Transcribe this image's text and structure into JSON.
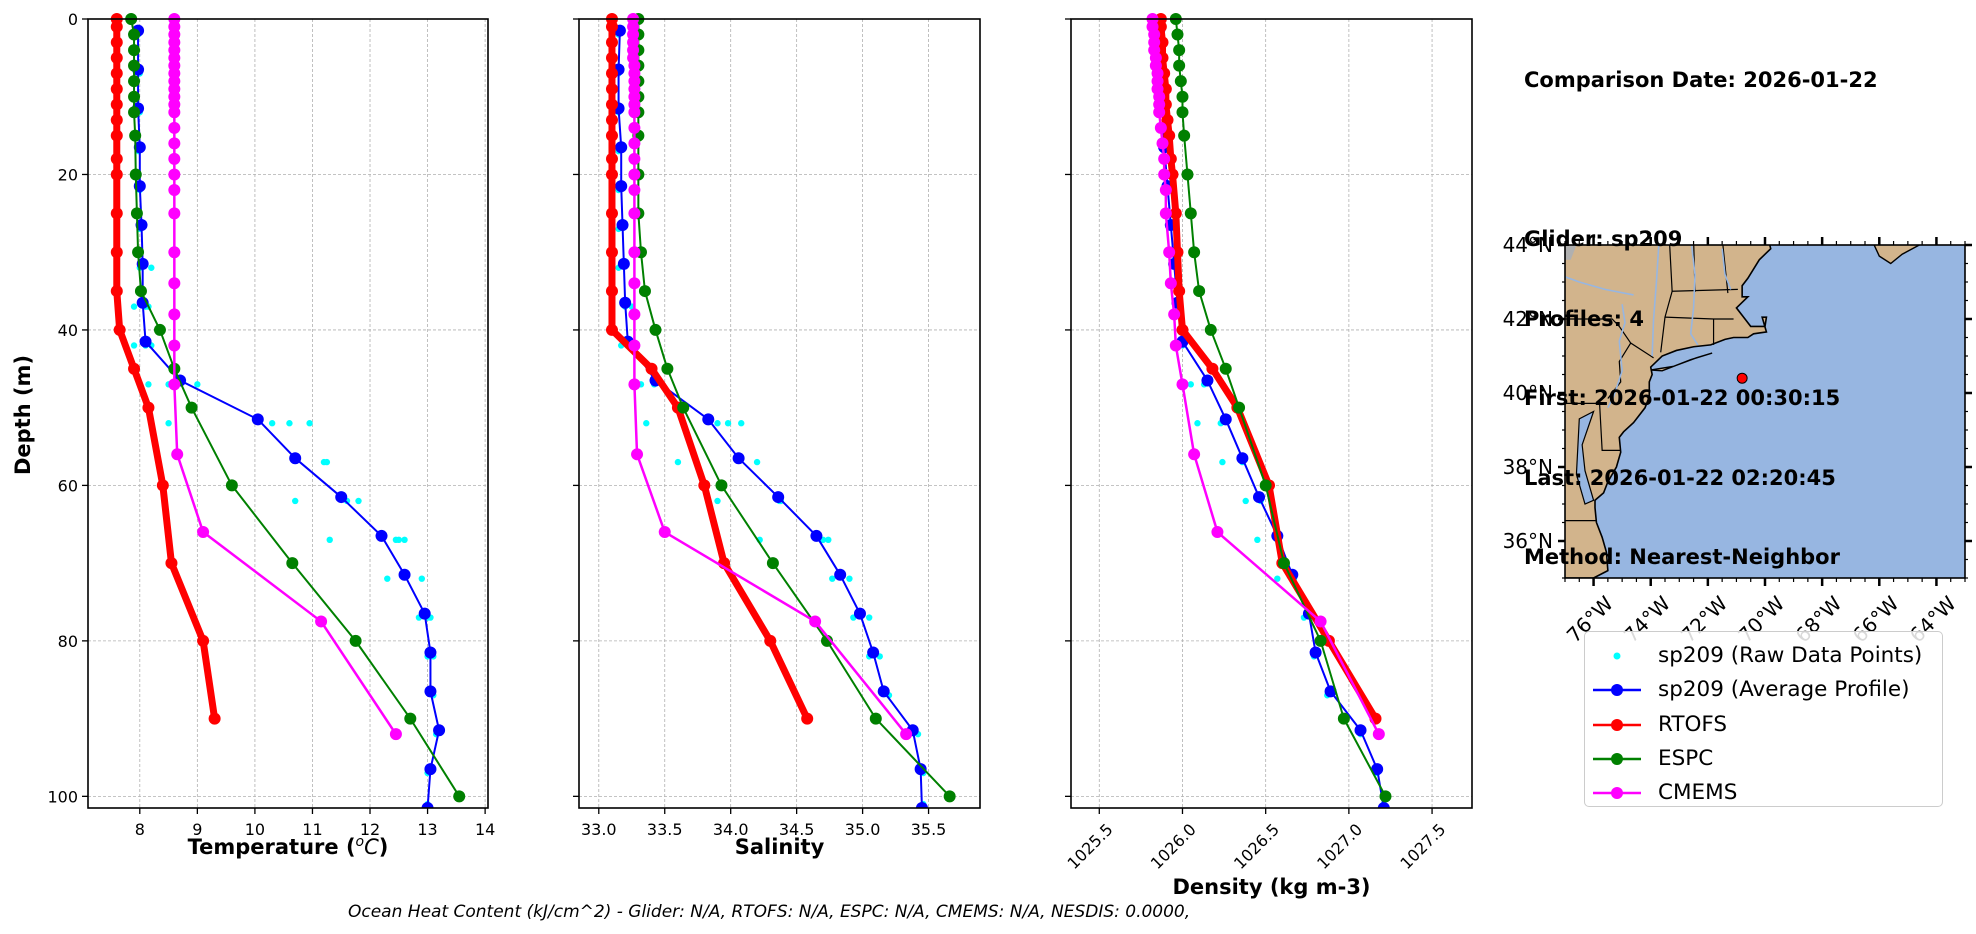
{
  "info": {
    "comparison_date": "Comparison Date: 2026-01-22",
    "glider": "Glider: sp209",
    "profiles": "Profiles: 4",
    "first": "First: 2026-01-22 00:30:15",
    "last": "Last: 2026-01-22 02:20:45",
    "method": "Method: Nearest-Neighbor"
  },
  "legend": [
    {
      "label": "sp209 (Raw Data Points)",
      "color": "#00ffff",
      "style": "points"
    },
    {
      "label": "sp209 (Average Profile)",
      "color": "#0000ff",
      "style": "line-marker"
    },
    {
      "label": "RTOFS",
      "color": "#ff0000",
      "style": "line-marker"
    },
    {
      "label": "ESPC",
      "color": "#008000",
      "style": "line-marker"
    },
    {
      "label": "CMEMS",
      "color": "#ff00ff",
      "style": "line-marker"
    }
  ],
  "footer": "Ocean Heat Content (kJ/cm^2) - Glider: N/A,  RTOFS: N/A,  ESPC: N/A,  CMEMS: N/A,  NESDIS: 0.0000,",
  "chart_data": [
    {
      "type": "line",
      "id": "temperature",
      "title": "",
      "xlabel": "Temperature (°C)",
      "ylabel": "Depth (m)",
      "xlim": [
        7.1,
        14.05
      ],
      "ylim": [
        101.5,
        0
      ],
      "xticks": [
        8,
        9,
        10,
        11,
        12,
        13,
        14
      ],
      "xtick_labels": [
        "8",
        "9",
        "10",
        "11",
        "12",
        "13",
        "14"
      ],
      "yticks": [
        0,
        20,
        40,
        60,
        80,
        100
      ],
      "ytick_labels": [
        "0",
        "20",
        "40",
        "60",
        "80",
        "100"
      ],
      "grid": true,
      "series": [
        {
          "name": "RTOFS",
          "color": "#ff0000",
          "width": 7,
          "marker": 6,
          "depth": [
            0,
            1,
            3,
            5,
            7,
            9,
            11,
            13,
            15,
            18,
            20,
            25,
            30,
            35,
            40,
            45,
            50,
            60,
            70,
            80,
            90
          ],
          "values": [
            7.6,
            7.6,
            7.6,
            7.6,
            7.6,
            7.6,
            7.6,
            7.6,
            7.6,
            7.6,
            7.6,
            7.6,
            7.6,
            7.6,
            7.65,
            7.9,
            8.15,
            8.4,
            8.55,
            9.1,
            9.3
          ]
        },
        {
          "name": "ESPC",
          "color": "#008000",
          "width": 2,
          "marker": 6,
          "depth": [
            0,
            2,
            4,
            6,
            8,
            10,
            12,
            15,
            20,
            25,
            30,
            35,
            40,
            45,
            50,
            60,
            70,
            80,
            90,
            100
          ],
          "values": [
            7.85,
            7.9,
            7.9,
            7.9,
            7.9,
            7.9,
            7.9,
            7.92,
            7.93,
            7.95,
            7.97,
            8.02,
            8.35,
            8.6,
            8.9,
            9.6,
            10.65,
            11.75,
            12.7,
            13.55
          ]
        },
        {
          "name": "CMEMS",
          "color": "#ff00ff",
          "width": 2.5,
          "marker": 6,
          "depth": [
            0,
            1,
            2,
            3,
            4,
            5,
            6,
            7,
            8,
            9,
            10,
            11,
            12,
            14,
            16,
            18,
            20,
            22,
            25,
            30,
            34,
            38,
            42,
            47,
            56,
            66,
            77.5,
            92
          ],
          "values": [
            8.6,
            8.6,
            8.6,
            8.6,
            8.6,
            8.6,
            8.6,
            8.6,
            8.6,
            8.6,
            8.6,
            8.6,
            8.6,
            8.6,
            8.6,
            8.6,
            8.6,
            8.6,
            8.6,
            8.6,
            8.6,
            8.6,
            8.6,
            8.6,
            8.65,
            9.1,
            11.15,
            12.45
          ]
        },
        {
          "name": "sp209 (Average Profile)",
          "color": "#0000ff",
          "width": 2,
          "marker": 6,
          "depth": [
            1.5,
            6.5,
            11.5,
            16.5,
            21.5,
            26.5,
            31.5,
            36.5,
            41.5,
            46.5,
            51.5,
            56.5,
            61.5,
            66.5,
            71.5,
            76.5,
            81.5,
            86.5,
            91.5,
            96.5,
            101.5
          ],
          "values": [
            7.97,
            7.97,
            7.97,
            8.0,
            8.0,
            8.03,
            8.05,
            8.05,
            8.1,
            8.7,
            10.05,
            10.7,
            11.5,
            12.2,
            12.6,
            12.95,
            13.05,
            13.05,
            13.2,
            13.05,
            13.0
          ]
        },
        {
          "name": "sp209 (Raw Data Points)",
          "color": "#00ffff",
          "type": "scatter",
          "marker": 3.2,
          "depth": [
            2,
            7,
            12,
            17,
            22,
            27,
            32,
            32,
            37,
            37,
            37,
            42,
            42,
            42,
            47,
            47,
            47,
            52,
            52,
            52,
            52,
            57,
            57,
            62,
            62,
            62,
            67,
            67,
            67,
            67,
            72,
            72,
            77,
            77,
            77,
            82,
            82,
            87,
            92,
            97,
            101
          ],
          "values": [
            7.97,
            8.0,
            8.0,
            7.98,
            8.0,
            8.0,
            8.0,
            8.2,
            7.9,
            8.1,
            8.15,
            7.9,
            8.1,
            8.2,
            8.15,
            8.5,
            9.0,
            8.5,
            10.3,
            10.6,
            10.95,
            11.2,
            11.25,
            10.7,
            11.6,
            11.8,
            11.3,
            12.5,
            12.6,
            12.45,
            12.3,
            12.9,
            12.85,
            13.0,
            13.05,
            13.0,
            13.1,
            13.1,
            13.15,
            13.0,
            13.0
          ]
        }
      ]
    },
    {
      "type": "line",
      "id": "salinity",
      "title": "",
      "xlabel": "Salinity",
      "ylabel": "",
      "xlim": [
        32.85,
        35.89
      ],
      "ylim": [
        101.5,
        0
      ],
      "xticks": [
        33.0,
        33.5,
        34.0,
        34.5,
        35.0,
        35.5
      ],
      "xtick_labels": [
        "33.0",
        "33.5",
        "34.0",
        "34.5",
        "35.0",
        "35.5"
      ],
      "yticks": [
        0,
        20,
        40,
        60,
        80,
        100
      ],
      "ytick_labels": [],
      "grid": true,
      "series": [
        {
          "name": "RTOFS",
          "color": "#ff0000",
          "width": 7,
          "marker": 6,
          "depth": [
            0,
            1,
            3,
            5,
            7,
            9,
            11,
            13,
            15,
            18,
            20,
            25,
            30,
            35,
            40,
            45,
            50,
            60,
            70,
            80,
            90
          ],
          "values": [
            33.1,
            33.1,
            33.1,
            33.1,
            33.1,
            33.1,
            33.1,
            33.1,
            33.1,
            33.1,
            33.1,
            33.1,
            33.1,
            33.1,
            33.1,
            33.4,
            33.6,
            33.8,
            33.95,
            34.3,
            34.58
          ]
        },
        {
          "name": "ESPC",
          "color": "#008000",
          "width": 2,
          "marker": 6,
          "depth": [
            0,
            2,
            4,
            6,
            8,
            10,
            12,
            15,
            20,
            25,
            30,
            35,
            40,
            45,
            50,
            60,
            70,
            80,
            90,
            100
          ],
          "values": [
            33.3,
            33.3,
            33.3,
            33.3,
            33.3,
            33.3,
            33.3,
            33.3,
            33.3,
            33.3,
            33.32,
            33.35,
            33.43,
            33.52,
            33.64,
            33.93,
            34.32,
            34.73,
            35.1,
            35.66
          ]
        },
        {
          "name": "CMEMS",
          "color": "#ff00ff",
          "width": 2.5,
          "marker": 6,
          "depth": [
            0,
            1,
            2,
            3,
            4,
            5,
            6,
            7,
            8,
            9,
            10,
            11,
            12,
            14,
            16,
            18,
            20,
            22,
            25,
            30,
            34,
            38,
            42,
            47,
            56,
            66,
            77.5,
            92
          ],
          "values": [
            33.26,
            33.26,
            33.26,
            33.26,
            33.26,
            33.26,
            33.27,
            33.27,
            33.27,
            33.27,
            33.27,
            33.27,
            33.27,
            33.27,
            33.27,
            33.27,
            33.27,
            33.27,
            33.27,
            33.27,
            33.27,
            33.27,
            33.27,
            33.27,
            33.29,
            33.5,
            34.64,
            35.33
          ]
        },
        {
          "name": "sp209 (Average Profile)",
          "color": "#0000ff",
          "width": 2,
          "marker": 6,
          "depth": [
            1.5,
            6.5,
            11.5,
            16.5,
            21.5,
            26.5,
            31.5,
            36.5,
            41.5,
            46.5,
            51.5,
            56.5,
            61.5,
            66.5,
            71.5,
            76.5,
            81.5,
            86.5,
            91.5,
            96.5,
            101.5
          ],
          "values": [
            33.16,
            33.15,
            33.15,
            33.17,
            33.17,
            33.18,
            33.19,
            33.2,
            33.22,
            33.43,
            33.83,
            34.06,
            34.36,
            34.65,
            34.83,
            34.98,
            35.08,
            35.16,
            35.38,
            35.44,
            35.45
          ]
        },
        {
          "name": "sp209 (Raw Data Points)",
          "color": "#00ffff",
          "type": "scatter",
          "marker": 3.2,
          "depth": [
            2,
            7,
            12,
            17,
            22,
            27,
            32,
            37,
            37,
            42,
            42,
            47,
            47,
            52,
            52,
            52,
            52,
            57,
            57,
            62,
            62,
            62,
            67,
            67,
            67,
            72,
            72,
            77,
            77,
            82,
            82,
            87,
            92,
            97,
            101
          ],
          "values": [
            33.15,
            33.15,
            33.15,
            33.15,
            33.15,
            33.15,
            33.15,
            33.2,
            33.25,
            33.17,
            33.28,
            33.32,
            33.42,
            33.36,
            33.9,
            33.98,
            34.08,
            33.6,
            34.2,
            33.9,
            34.37,
            34.38,
            34.22,
            34.7,
            34.74,
            34.77,
            34.9,
            34.93,
            35.05,
            35.05,
            35.13,
            35.2,
            35.42,
            35.46,
            35.46
          ]
        }
      ]
    },
    {
      "type": "line",
      "id": "density",
      "title": "",
      "xlabel": "Density (kg m-3)",
      "ylabel": "",
      "xlim": [
        1025.33,
        1027.74
      ],
      "ylim": [
        101.5,
        0
      ],
      "xticks": [
        1025.5,
        1026.0,
        1026.5,
        1027.0,
        1027.5
      ],
      "xtick_labels": [
        "1025.5",
        "1026.0",
        "1026.5",
        "1027.0",
        "1027.5"
      ],
      "yticks": [
        0,
        20,
        40,
        60,
        80,
        100
      ],
      "ytick_labels": [],
      "grid": true,
      "series": [
        {
          "name": "RTOFS",
          "color": "#ff0000",
          "width": 7,
          "marker": 6,
          "depth": [
            0,
            1,
            3,
            5,
            7,
            9,
            11,
            13,
            15,
            18,
            20,
            25,
            30,
            35,
            40,
            45,
            50,
            60,
            70,
            80,
            90
          ],
          "values": [
            1025.87,
            1025.87,
            1025.88,
            1025.88,
            1025.89,
            1025.9,
            1025.9,
            1025.91,
            1025.92,
            1025.93,
            1025.94,
            1025.96,
            1025.97,
            1025.98,
            1026.0,
            1026.18,
            1026.33,
            1026.52,
            1026.6,
            1026.88,
            1027.16
          ]
        },
        {
          "name": "ESPC",
          "color": "#008000",
          "width": 2,
          "marker": 6,
          "depth": [
            0,
            2,
            4,
            6,
            8,
            10,
            12,
            15,
            20,
            25,
            30,
            35,
            40,
            45,
            50,
            60,
            70,
            80,
            90,
            100
          ],
          "values": [
            1025.96,
            1025.97,
            1025.98,
            1025.98,
            1025.99,
            1026.0,
            1026.0,
            1026.01,
            1026.03,
            1026.05,
            1026.07,
            1026.1,
            1026.17,
            1026.26,
            1026.34,
            1026.5,
            1026.61,
            1026.83,
            1026.97,
            1027.22
          ]
        },
        {
          "name": "CMEMS",
          "color": "#ff00ff",
          "width": 2.5,
          "marker": 6,
          "depth": [
            0,
            1,
            2,
            3,
            4,
            5,
            6,
            7,
            8,
            9,
            10,
            11,
            12,
            14,
            16,
            18,
            20,
            22,
            25,
            30,
            34,
            38,
            42,
            47,
            56,
            66,
            77.5,
            92
          ],
          "values": [
            1025.82,
            1025.82,
            1025.83,
            1025.83,
            1025.83,
            1025.84,
            1025.84,
            1025.85,
            1025.85,
            1025.85,
            1025.86,
            1025.86,
            1025.86,
            1025.87,
            1025.88,
            1025.89,
            1025.89,
            1025.9,
            1025.9,
            1025.92,
            1025.93,
            1025.95,
            1025.96,
            1026.0,
            1026.07,
            1026.21,
            1026.83,
            1027.18
          ]
        },
        {
          "name": "sp209 (Average Profile)",
          "color": "#0000ff",
          "width": 2,
          "marker": 6,
          "depth": [
            1.5,
            6.5,
            11.5,
            16.5,
            21.5,
            26.5,
            31.5,
            36.5,
            41.5,
            46.5,
            51.5,
            56.5,
            61.5,
            66.5,
            71.5,
            76.5,
            81.5,
            86.5,
            91.5,
            96.5,
            101.5
          ],
          "values": [
            1025.86,
            1025.87,
            1025.88,
            1025.89,
            1025.91,
            1025.93,
            1025.95,
            1025.97,
            1026.0,
            1026.15,
            1026.26,
            1026.36,
            1026.46,
            1026.57,
            1026.66,
            1026.76,
            1026.8,
            1026.89,
            1027.07,
            1027.17,
            1027.21
          ]
        },
        {
          "name": "sp209 (Raw Data Points)",
          "color": "#00ffff",
          "type": "scatter",
          "marker": 3.2,
          "depth": [
            32,
            37,
            42,
            47,
            47,
            52,
            52,
            57,
            57,
            62,
            62,
            67,
            67,
            72,
            72,
            77,
            77,
            82,
            87,
            92,
            97,
            101
          ],
          "values": [
            1025.97,
            1025.98,
            1026.0,
            1026.05,
            1026.13,
            1026.09,
            1026.23,
            1026.24,
            1026.36,
            1026.38,
            1026.47,
            1026.45,
            1026.57,
            1026.57,
            1026.67,
            1026.73,
            1026.78,
            1026.79,
            1026.87,
            1027.07,
            1027.17,
            1027.21
          ]
        }
      ]
    }
  ],
  "map": {
    "lat_ticks": [
      "44°N",
      "42°N",
      "40°N",
      "38°N",
      "36°N"
    ],
    "lat_values": [
      44,
      42,
      40,
      38,
      36
    ],
    "lon_ticks": [
      "76°W",
      "74°W",
      "72°W",
      "70°W",
      "68°W",
      "66°W",
      "64°W"
    ],
    "lon_values": [
      -76,
      -74,
      -72,
      -70,
      -68,
      -66,
      -64
    ],
    "extent": {
      "lon_min": -77,
      "lon_max": -63,
      "lat_min": 35,
      "lat_max": 44
    },
    "glider_position": {
      "lon": -70.8,
      "lat": 40.4
    },
    "land_color": "#d2b48c",
    "ocean_color": "#97b6e1",
    "marker_color": "#ff0000"
  }
}
